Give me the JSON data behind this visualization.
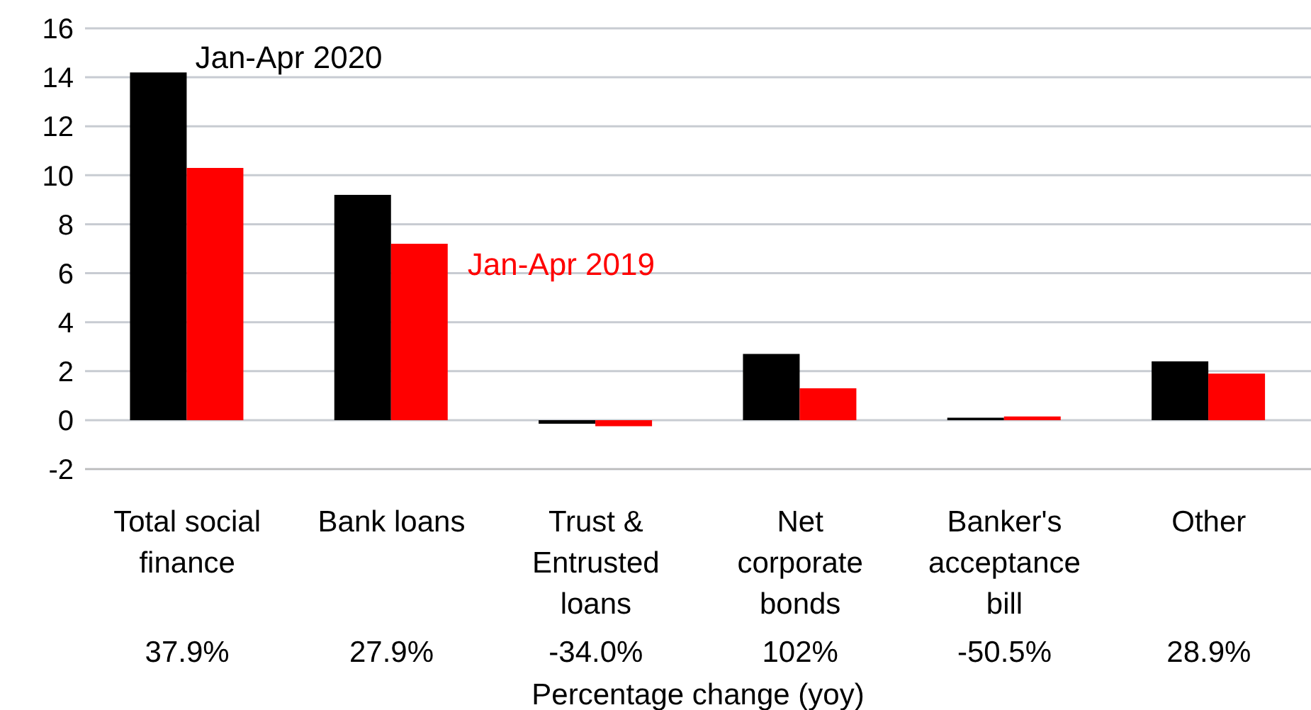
{
  "chart_data": {
    "type": "bar",
    "xlabel": "Percentage change (yoy)",
    "categories": [
      "Total social finance",
      "Bank loans",
      "Trust & Entrusted loans",
      "Net corporate bonds",
      "Banker's acceptance bill",
      "Other"
    ],
    "series": [
      {
        "name": "Jan-Apr 2020",
        "color": "#000000",
        "values": [
          14.2,
          9.2,
          -0.15,
          2.7,
          0.1,
          2.4
        ]
      },
      {
        "name": "Jan-Apr 2019",
        "color": "#ff0000",
        "values": [
          10.3,
          7.2,
          -0.25,
          1.3,
          0.15,
          1.9
        ]
      }
    ],
    "annotations": [
      "37.9%",
      "27.9%",
      "-34.0%",
      "102%",
      "-50.5%",
      "28.9%"
    ],
    "ylim": [
      -2,
      16
    ],
    "yticks": [
      -2,
      0,
      2,
      4,
      6,
      8,
      10,
      12,
      14,
      16
    ],
    "grid": "y",
    "legend": false
  }
}
